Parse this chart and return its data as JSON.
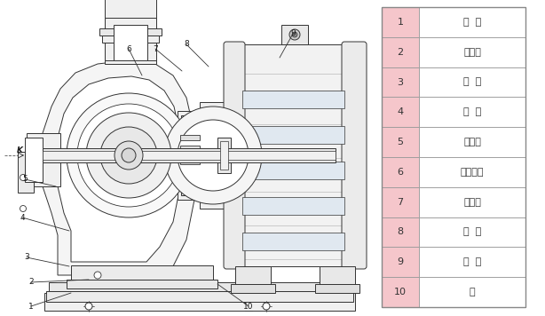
{
  "table_items": [
    {
      "num": "1",
      "name": "底  座"
    },
    {
      "num": "2",
      "name": "放水孔"
    },
    {
      "num": "3",
      "name": "泵  体"
    },
    {
      "num": "4",
      "name": "叶  轮"
    },
    {
      "num": "5",
      "name": "取压孔"
    },
    {
      "num": "6",
      "name": "机械密封"
    },
    {
      "num": "7",
      "name": "挡水圈"
    },
    {
      "num": "8",
      "name": "端  盖"
    },
    {
      "num": "9",
      "name": "电  机"
    },
    {
      "num": "10",
      "name": "轴"
    }
  ],
  "num_col_bg": "#f5c6cb",
  "cell_bg": "#ffffff",
  "border_color": "#999999",
  "text_color": "#333333",
  "diagram_bg": "#ffffff",
  "lc": "#333333",
  "wm_color": "#a0c8e8",
  "label_fs": 6.5,
  "table_fs": 8.0,
  "lw": 0.7
}
